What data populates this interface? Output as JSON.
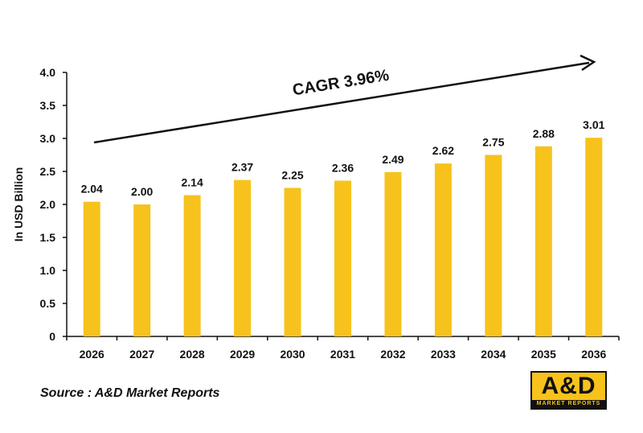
{
  "source_note": "Source : A&D Market Reports",
  "logo": {
    "text": "A&D",
    "subtext": "MARKET REPORTS"
  },
  "colors": {
    "bar": "#f7c21b",
    "text": "#111111",
    "axis": "#111111",
    "arrow": "#111111"
  },
  "chart_data": {
    "type": "bar",
    "title": "",
    "xlabel": "",
    "ylabel": "In USD Billion",
    "categories": [
      "2026",
      "2027",
      "2028",
      "2029",
      "2030",
      "2031",
      "2032",
      "2033",
      "2034",
      "2035",
      "2036"
    ],
    "values": [
      2.04,
      2.0,
      2.14,
      2.37,
      2.25,
      2.36,
      2.49,
      2.62,
      2.75,
      2.88,
      3.01
    ],
    "value_labels": [
      "2.04",
      "2.00",
      "2.14",
      "2.37",
      "2.25",
      "2.36",
      "2.49",
      "2.62",
      "2.75",
      "2.88",
      "3.01"
    ],
    "y_ticks": [
      0,
      0.5,
      1.0,
      1.5,
      2.0,
      2.5,
      3.0,
      3.5,
      4.0
    ],
    "y_tick_labels": [
      "0",
      "0.5",
      "1.0",
      "1.5",
      "2.0",
      "2.5",
      "3.0",
      "3.5",
      "4.0"
    ],
    "ylim": [
      0,
      4.0
    ],
    "grid": false,
    "annotation": {
      "text": "CAGR 3.96%"
    }
  }
}
